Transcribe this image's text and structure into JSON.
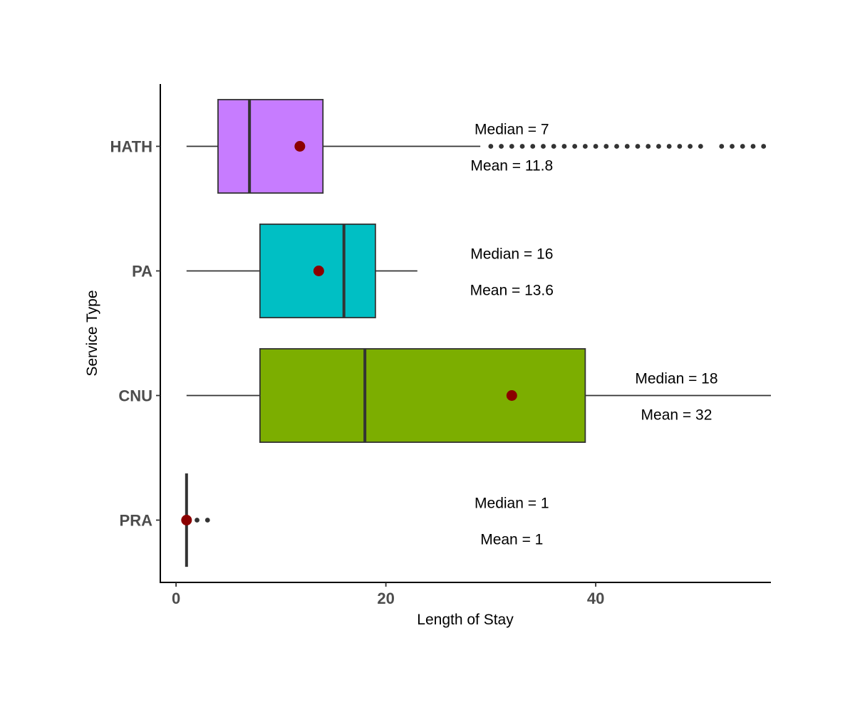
{
  "chart_data": {
    "type": "boxplot",
    "orientation": "horizontal",
    "xlabel": "Length of Stay",
    "ylabel": "Service Type",
    "xlim": [
      -1.5,
      56.7
    ],
    "x_ticks": [
      0,
      20,
      40
    ],
    "categories": [
      "HATH",
      "PA",
      "CNU",
      "PRA"
    ],
    "boxes": [
      {
        "category": "HATH",
        "color": "#C77CFF",
        "whisker_low": 1,
        "q1": 4,
        "median": 7,
        "q3": 14,
        "whisker_high": 29,
        "mean": 11.8,
        "outliers": [
          30,
          31,
          32,
          33,
          34,
          35,
          36,
          37,
          38,
          39,
          40,
          41,
          42,
          43,
          44,
          45,
          46,
          47,
          48,
          49,
          50,
          52,
          53,
          54,
          55,
          56
        ],
        "median_label": "Median = 7",
        "mean_label": "Mean = 11.8",
        "label_x": 32
      },
      {
        "category": "PA",
        "color": "#00BFC4",
        "whisker_low": 1,
        "q1": 8,
        "median": 16,
        "q3": 19,
        "whisker_high": 23,
        "mean": 13.6,
        "outliers": [],
        "median_label": "Median = 16",
        "mean_label": "Mean = 13.6",
        "label_x": 32
      },
      {
        "category": "CNU",
        "color": "#7CAE00",
        "whisker_low": 1,
        "q1": 8,
        "median": 18,
        "q3": 39,
        "whisker_high": 56.7,
        "mean": 32,
        "outliers": [],
        "median_label": "Median = 18",
        "mean_label": "Mean = 32",
        "label_x": 47.7
      },
      {
        "category": "PRA",
        "color": "#F8766D",
        "whisker_low": 1,
        "q1": 1,
        "median": 1,
        "q3": 1,
        "whisker_high": 1,
        "mean": 1,
        "outliers": [
          2,
          3
        ],
        "median_label": "Median = 1",
        "mean_label": "Mean = 1",
        "label_x": 32
      }
    ],
    "mean_marker_color": "#8B0000",
    "grid": false,
    "legend": "none"
  }
}
